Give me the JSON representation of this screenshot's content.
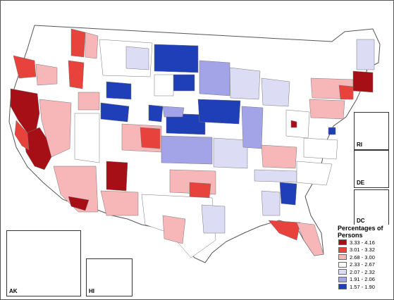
{
  "legend": {
    "title": "Percentages of Persons",
    "items": [
      {
        "label": "3.33 - 4.16",
        "color": "#a50f15"
      },
      {
        "label": "3.01 - 3.32",
        "color": "#e8423c"
      },
      {
        "label": "2.68 - 3.00",
        "color": "#f7b7b9"
      },
      {
        "label": "2.33 - 2.67",
        "color": "#ffffff"
      },
      {
        "label": "2.07 - 2.32",
        "color": "#dcdcf5"
      },
      {
        "label": "1.91 - 2.06",
        "color": "#a3a3e8"
      },
      {
        "label": "1.57 - 1.90",
        "color": "#1f3fb8"
      }
    ]
  },
  "insets": {
    "alaska": "AK",
    "hawaii": "HI",
    "rhode_island": "RI",
    "delaware": "DE",
    "dc": "DC"
  }
}
